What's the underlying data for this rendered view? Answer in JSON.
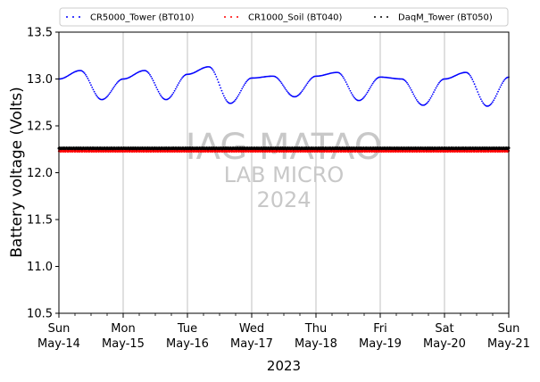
{
  "chart_data": {
    "type": "scatter",
    "xlabel": "2023",
    "ylabel": "Battery voltage (Volts)",
    "ylim": [
      10.5,
      13.5
    ],
    "xlim": [
      "2023-05-14",
      "2023-05-21"
    ],
    "y_ticks": [
      "10.5",
      "11.0",
      "11.5",
      "12.0",
      "12.5",
      "13.0",
      "13.5"
    ],
    "x_ticks": [
      {
        "day": "Sun",
        "date": "May-14"
      },
      {
        "day": "Mon",
        "date": "May-15"
      },
      {
        "day": "Tue",
        "date": "May-16"
      },
      {
        "day": "Wed",
        "date": "May-17"
      },
      {
        "day": "Thu",
        "date": "May-18"
      },
      {
        "day": "Fri",
        "date": "May-19"
      },
      {
        "day": "Sat",
        "date": "May-20"
      },
      {
        "day": "Sun",
        "date": "May-21"
      }
    ],
    "grid": "vertical",
    "legend_position": "top",
    "series": [
      {
        "name": "CR5000_Tower (BT010)",
        "color": "#0000ff",
        "daily_cycle_approx": {
          "base": 13.0,
          "min_near_hour": 7,
          "min": 12.76,
          "max_near_hour": 17,
          "max": 13.1
        },
        "values": [
          13.0,
          13.09,
          12.78,
          13.0,
          13.09,
          12.78,
          13.05,
          13.13,
          12.74,
          13.01,
          13.03,
          12.81,
          13.03,
          13.07,
          12.77,
          13.02,
          13.0,
          12.72,
          13.0,
          13.07,
          12.71,
          13.02
        ]
      },
      {
        "name": "CR1000_Soil (BT040)",
        "color": "#ff0000",
        "values": [
          12.23,
          12.23,
          12.23,
          12.23,
          12.23,
          12.23,
          12.23,
          12.23
        ]
      },
      {
        "name": "DaqM_Tower (BT050)",
        "color": "#000000",
        "values": [
          12.26,
          12.26,
          12.26,
          12.26,
          12.26,
          12.26,
          12.26,
          12.26
        ]
      }
    ]
  },
  "watermark": {
    "line1": "IAG MATAO",
    "line2": "LAB MICRO",
    "line3": "2024"
  }
}
